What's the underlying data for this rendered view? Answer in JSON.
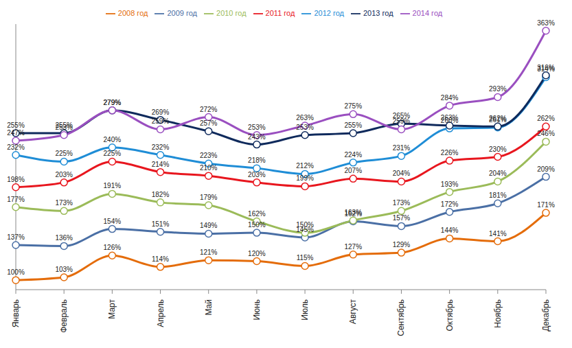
{
  "chart_data": {
    "type": "line",
    "categories": [
      "Январь",
      "Февраль",
      "Март",
      "Апрель",
      "Май",
      "Июнь",
      "Июль",
      "Август",
      "Сентябрь",
      "Октябрь",
      "Ноябрь",
      "Декабрь"
    ],
    "series": [
      {
        "name": "2008 год",
        "color": "#e46c0a",
        "values": [
          100,
          103,
          126,
          114,
          121,
          120,
          115,
          127,
          129,
          144,
          141,
          171
        ],
        "value_labels": [
          "100%",
          "103%",
          "126%",
          "114%",
          "121%",
          "120%",
          "115%",
          "127%",
          "129%",
          "144%",
          "141%",
          "171%"
        ]
      },
      {
        "name": "2009 год",
        "color": "#4a6fa5",
        "values": [
          137,
          136,
          154,
          151,
          149,
          150,
          145,
          162,
          157,
          172,
          181,
          209
        ],
        "value_labels": [
          "137%",
          "136%",
          "154%",
          "151%",
          "149%",
          "150%",
          "145%",
          "162%",
          "157%",
          "172%",
          "181%",
          "209%"
        ]
      },
      {
        "name": "2010 год",
        "color": "#9bbb59",
        "values": [
          177,
          173,
          191,
          182,
          179,
          162,
          150,
          163,
          173,
          193,
          204,
          246
        ],
        "value_labels": [
          "177%",
          "173%",
          "191%",
          "182%",
          "179%",
          "162%",
          "150%",
          "163%",
          "173%",
          "193%",
          "204%",
          "246%"
        ]
      },
      {
        "name": "2011 год",
        "color": "#e8161e",
        "values": [
          198,
          203,
          225,
          214,
          210,
          203,
          199,
          207,
          204,
          226,
          230,
          262
        ],
        "value_labels": [
          "198%",
          "203%",
          "225%",
          "214%",
          "210%",
          "203%",
          "199%",
          "207%",
          "204%",
          "226%",
          "230%",
          "262%"
        ]
      },
      {
        "name": "2012 год",
        "color": "#1f8dd6",
        "values": [
          232,
          225,
          240,
          232,
          223,
          218,
          212,
          224,
          231,
          260,
          261,
          314
        ],
        "value_labels": [
          "232%",
          "225%",
          "240%",
          "232%",
          "223%",
          "218%",
          "212%",
          "224%",
          "231%",
          "260%",
          "261%",
          "314%"
        ]
      },
      {
        "name": "2013 год",
        "color": "#0f2a5c",
        "values": [
          255,
          255,
          279,
          269,
          257,
          243,
          253,
          255,
          265,
          263,
          262,
          316
        ],
        "value_labels": [
          "255%",
          "255%",
          "279%",
          "269%",
          "257%",
          "243%",
          "253%",
          "255%",
          "265%",
          "263%",
          "262%",
          "316%"
        ]
      },
      {
        "name": "2014 год",
        "color": "#9a4fc0",
        "values": [
          247,
          253,
          279,
          259,
          272,
          253,
          263,
          275,
          259,
          284,
          293,
          363
        ],
        "value_labels": [
          "247%",
          "253%",
          "279%",
          "259%",
          "272%",
          "253%",
          "263%",
          "275%",
          "259%",
          "284%",
          "293%",
          "363%"
        ]
      }
    ],
    "ylim": [
      90,
      370
    ],
    "tick_labels": "x",
    "grid": false,
    "legend": "top",
    "data_labels": true,
    "marker": "circle",
    "line_style": "solid"
  }
}
